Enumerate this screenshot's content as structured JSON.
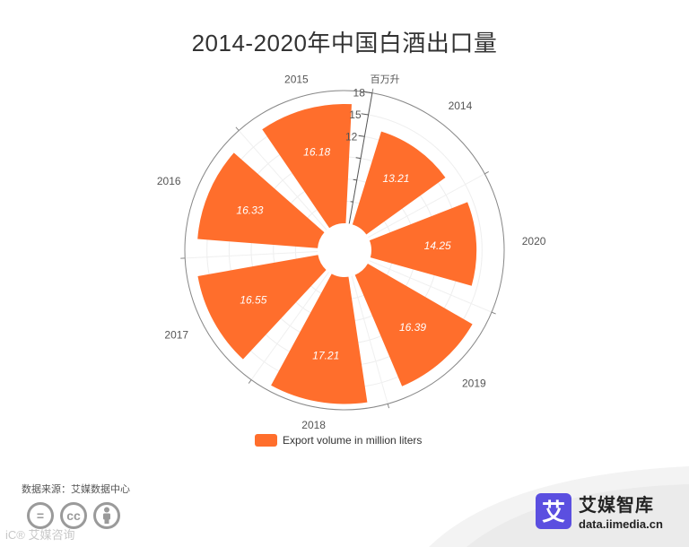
{
  "title": "2014-2020年中国白酒出口量",
  "chart_data": {
    "type": "polar-bar",
    "categories": [
      "2014",
      "2020",
      "2019",
      "2018",
      "2017",
      "2016",
      "2015"
    ],
    "series": [
      {
        "name": "Export volume in million liters",
        "values": [
          13.21,
          14.25,
          16.39,
          17.21,
          16.55,
          16.33,
          16.18
        ],
        "color": "#ff6e2c"
      }
    ],
    "radial_axis": {
      "unit": "百万升",
      "ticks_shown": [
        "18",
        "15",
        "12"
      ],
      "range": [
        0,
        18
      ]
    },
    "legend_position": "bottom"
  },
  "legend": {
    "label": "Export volume in million liters",
    "color": "#ff6e2c"
  },
  "footer": {
    "source": "数据来源：艾媒数据中心",
    "license_icons": [
      "equals-icon",
      "cc-icon",
      "person-icon"
    ],
    "license_glyphs": [
      "=",
      "cc",
      ""
    ],
    "watermark": "iC® 艾媒咨询",
    "brand_name": "艾媒智库",
    "brand_url": "data.iimedia.cn",
    "brand_logo_char": "艾",
    "brand_color": "#5b4fe0"
  }
}
